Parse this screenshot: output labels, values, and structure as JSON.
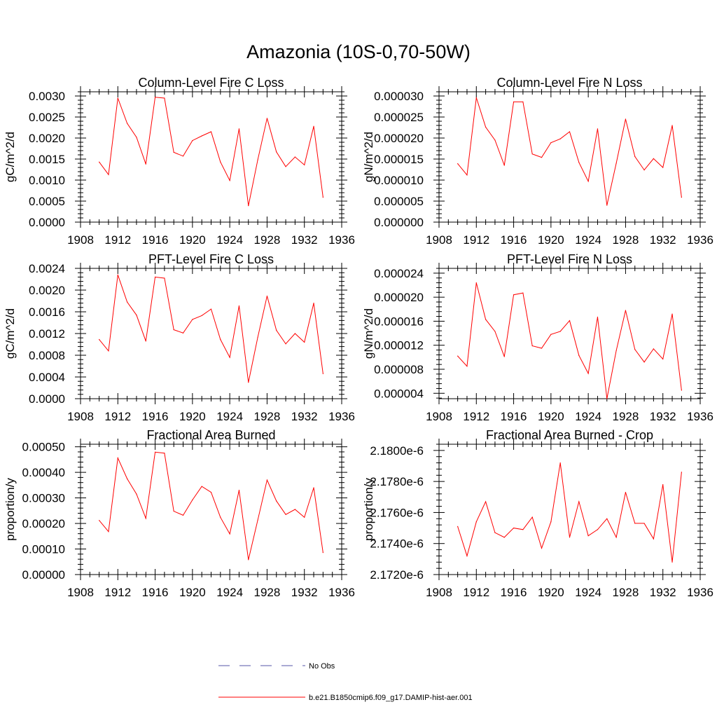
{
  "main_title": "Amazonia (10S-0,70-50W)",
  "chart_data": [
    {
      "type": "line",
      "title": "Column-Level Fire C Loss",
      "ylabel": "gC/m^2/d",
      "xlim": [
        1908,
        1936
      ],
      "x_ticks": [
        "1908",
        "1912",
        "1916",
        "1920",
        "1924",
        "1928",
        "1932",
        "1936"
      ],
      "ylim": [
        0,
        0.0031
      ],
      "y_ticks": [
        0,
        0.0005,
        0.001,
        0.0015,
        0.002,
        0.0025,
        0.003
      ],
      "y_tick_labels": [
        "0.0000",
        "0.0005",
        "0.0010",
        "0.0015",
        "0.0020",
        "0.0025",
        "0.0030"
      ],
      "x": [
        1910,
        1911,
        1912,
        1913,
        1914,
        1915,
        1916,
        1917,
        1918,
        1919,
        1920,
        1921,
        1922,
        1923,
        1924,
        1925,
        1926,
        1927,
        1928,
        1929,
        1930,
        1931,
        1932,
        1933,
        1934
      ],
      "series": [
        {
          "name": "b.e21.B1850cmip6.f09_g17.DAMIP-hist-aer.001",
          "color": "#ff0000",
          "values": [
            0.00143,
            0.00113,
            0.00295,
            0.00235,
            0.00202,
            0.00138,
            0.00297,
            0.00295,
            0.00166,
            0.00157,
            0.00194,
            0.00205,
            0.00215,
            0.00143,
            0.00099,
            0.00222,
            0.00039,
            0.00148,
            0.00247,
            0.00167,
            0.00132,
            0.00155,
            0.00136,
            0.00228,
            0.00059
          ]
        }
      ]
    },
    {
      "type": "line",
      "title": "Column-Level Fire N Loss",
      "ylabel": "gN/m^2/d",
      "xlim": [
        1908,
        1936
      ],
      "x_ticks": [
        "1908",
        "1912",
        "1916",
        "1920",
        "1924",
        "1928",
        "1932",
        "1936"
      ],
      "ylim": [
        0,
        3.1e-05
      ],
      "y_ticks": [
        0,
        5e-06,
        1e-05,
        1.5e-05,
        2e-05,
        2.5e-05,
        3e-05
      ],
      "y_tick_labels": [
        "0.000000",
        "0.000005",
        "0.000010",
        "0.000015",
        "0.000020",
        "0.000025",
        "0.000030"
      ],
      "x": [
        1910,
        1911,
        1912,
        1913,
        1914,
        1915,
        1916,
        1917,
        1918,
        1919,
        1920,
        1921,
        1922,
        1923,
        1924,
        1925,
        1926,
        1927,
        1928,
        1929,
        1930,
        1931,
        1932,
        1933,
        1934
      ],
      "series": [
        {
          "name": "b.e21.B1850cmip6.f09_g17.DAMIP-hist-aer.001",
          "color": "#ff0000",
          "values": [
            1.39e-05,
            1.12e-05,
            2.96e-05,
            2.26e-05,
            1.95e-05,
            1.35e-05,
            2.86e-05,
            2.86e-05,
            1.62e-05,
            1.54e-05,
            1.89e-05,
            1.98e-05,
            2.15e-05,
            1.42e-05,
            9.7e-06,
            2.22e-05,
            4e-06,
            1.4e-05,
            2.45e-05,
            1.56e-05,
            1.24e-05,
            1.51e-05,
            1.3e-05,
            2.3e-05,
            5.9e-06
          ]
        }
      ]
    },
    {
      "type": "line",
      "title": "PFT-Level Fire C Loss",
      "ylabel": "gC/m^2/d",
      "xlim": [
        1908,
        1936
      ],
      "x_ticks": [
        "1908",
        "1912",
        "1916",
        "1920",
        "1924",
        "1928",
        "1932",
        "1936"
      ],
      "ylim": [
        0,
        0.0024
      ],
      "y_ticks": [
        0,
        0.0004,
        0.0008,
        0.0012,
        0.0016,
        0.002,
        0.0024
      ],
      "y_tick_labels": [
        "0.0000",
        "0.0004",
        "0.0008",
        "0.0012",
        "0.0016",
        "0.0020",
        "0.0024"
      ],
      "x": [
        1910,
        1911,
        1912,
        1913,
        1914,
        1915,
        1916,
        1917,
        1918,
        1919,
        1920,
        1921,
        1922,
        1923,
        1924,
        1925,
        1926,
        1927,
        1928,
        1929,
        1930,
        1931,
        1932,
        1933,
        1934
      ],
      "series": [
        {
          "name": "b.e21.B1850cmip6.f09_g17.DAMIP-hist-aer.001",
          "color": "#ff0000",
          "values": [
            0.00109,
            0.00088,
            0.00228,
            0.00178,
            0.00154,
            0.00106,
            0.00224,
            0.00222,
            0.00127,
            0.00121,
            0.00146,
            0.00153,
            0.00165,
            0.00109,
            0.00076,
            0.00171,
            0.0003,
            0.00113,
            0.00189,
            0.00126,
            0.00101,
            0.0012,
            0.00104,
            0.00176,
            0.00046
          ]
        }
      ]
    },
    {
      "type": "line",
      "title": "PFT-Level Fire N Loss",
      "ylabel": "gN/m^2/d",
      "xlim": [
        1908,
        1936
      ],
      "x_ticks": [
        "1908",
        "1912",
        "1916",
        "1920",
        "1924",
        "1928",
        "1932",
        "1936"
      ],
      "ylim": [
        3.1e-06,
        2.48e-05
      ],
      "y_ticks": [
        4e-06,
        8e-06,
        1.2e-05,
        1.6e-05,
        2e-05,
        2.4e-05
      ],
      "y_tick_labels": [
        "0.000004",
        "0.000008",
        "0.000012",
        "0.000016",
        "0.000020",
        "0.000024"
      ],
      "x": [
        1910,
        1911,
        1912,
        1913,
        1914,
        1915,
        1916,
        1917,
        1918,
        1919,
        1920,
        1921,
        1922,
        1923,
        1924,
        1925,
        1926,
        1927,
        1928,
        1929,
        1930,
        1931,
        1932,
        1933,
        1934
      ],
      "series": [
        {
          "name": "b.e21.B1850cmip6.f09_g17.DAMIP-hist-aer.001",
          "color": "#ff0000",
          "values": [
            1.02e-05,
            8.5e-06,
            2.24e-05,
            1.63e-05,
            1.43e-05,
            1.01e-05,
            2.04e-05,
            2.07e-05,
            1.19e-05,
            1.15e-05,
            1.38e-05,
            1.43e-05,
            1.61e-05,
            1.03e-05,
            7.3e-06,
            1.67e-05,
            3.1e-06,
            1.11e-05,
            1.78e-05,
            1.13e-05,
            9.2e-06,
            1.14e-05,
            9.7e-06,
            1.72e-05,
            4.5e-06
          ]
        }
      ]
    },
    {
      "type": "line",
      "title": "Fractional Area Burned",
      "ylabel": "proportion/y",
      "xlim": [
        1908,
        1936
      ],
      "x_ticks": [
        "1908",
        "1912",
        "1916",
        "1920",
        "1924",
        "1928",
        "1932",
        "1936"
      ],
      "ylim": [
        0,
        0.00051
      ],
      "y_ticks": [
        0,
        0.0001,
        0.0002,
        0.0003,
        0.0004,
        0.0005
      ],
      "y_tick_labels": [
        "0.00000",
        "0.00010",
        "0.00020",
        "0.00030",
        "0.00040",
        "0.00050"
      ],
      "x": [
        1910,
        1911,
        1912,
        1913,
        1914,
        1915,
        1916,
        1917,
        1918,
        1919,
        1920,
        1921,
        1922,
        1923,
        1924,
        1925,
        1926,
        1927,
        1928,
        1929,
        1930,
        1931,
        1932,
        1933,
        1934
      ],
      "series": [
        {
          "name": "b.e21.B1850cmip6.f09_g17.DAMIP-hist-aer.001",
          "color": "#ff0000",
          "values": [
            0.000212,
            0.000168,
            0.000456,
            0.000375,
            0.000315,
            0.00022,
            0.000479,
            0.000475,
            0.000248,
            0.000232,
            0.000292,
            0.000345,
            0.000322,
            0.000224,
            0.000159,
            0.00033,
            5.8e-05,
            0.000213,
            0.00037,
            0.000288,
            0.000235,
            0.000255,
            0.000224,
            0.00034,
            8.6e-05
          ]
        }
      ]
    },
    {
      "type": "line",
      "title": "Fractional Area Burned - Crop",
      "ylabel": "proportion/y",
      "xlim": [
        1908,
        1936
      ],
      "x_ticks": [
        "1908",
        "1912",
        "1916",
        "1920",
        "1924",
        "1928",
        "1932",
        "1936"
      ],
      "ylim": [
        2.172e-06,
        2.1804e-06
      ],
      "y_ticks": [
        2.172e-06,
        2.174e-06,
        2.176e-06,
        2.178e-06,
        2.18e-06
      ],
      "y_tick_labels": [
        "2.1720e-6",
        "2.1740e-6",
        "2.1760e-6",
        "2.1780e-6",
        "2.1800e-6"
      ],
      "x": [
        1910,
        1911,
        1912,
        1913,
        1914,
        1915,
        1916,
        1917,
        1918,
        1919,
        1920,
        1921,
        1922,
        1923,
        1924,
        1925,
        1926,
        1927,
        1928,
        1929,
        1930,
        1931,
        1932,
        1933,
        1934
      ],
      "series": [
        {
          "name": "b.e21.B1850cmip6.f09_g17.DAMIP-hist-aer.001",
          "color": "#ff0000",
          "values": [
            2.1751e-06,
            2.1732e-06,
            2.1754e-06,
            2.1767e-06,
            2.1747e-06,
            2.1744e-06,
            2.175e-06,
            2.1749e-06,
            2.1757e-06,
            2.1737e-06,
            2.1754e-06,
            2.1792e-06,
            2.1744e-06,
            2.1767e-06,
            2.1745e-06,
            2.1749e-06,
            2.1756e-06,
            2.1744e-06,
            2.1773e-06,
            2.1753e-06,
            2.1753e-06,
            2.1743e-06,
            2.1778e-06,
            2.1728e-06,
            2.1786e-06
          ]
        }
      ]
    }
  ],
  "legend": [
    {
      "label": "No Obs",
      "color": "#5555aa",
      "style": "dashed"
    },
    {
      "label": "b.e21.B1850cmip6.f09_g17.DAMIP-hist-aer.001",
      "color": "#ff0000",
      "style": "solid"
    }
  ]
}
